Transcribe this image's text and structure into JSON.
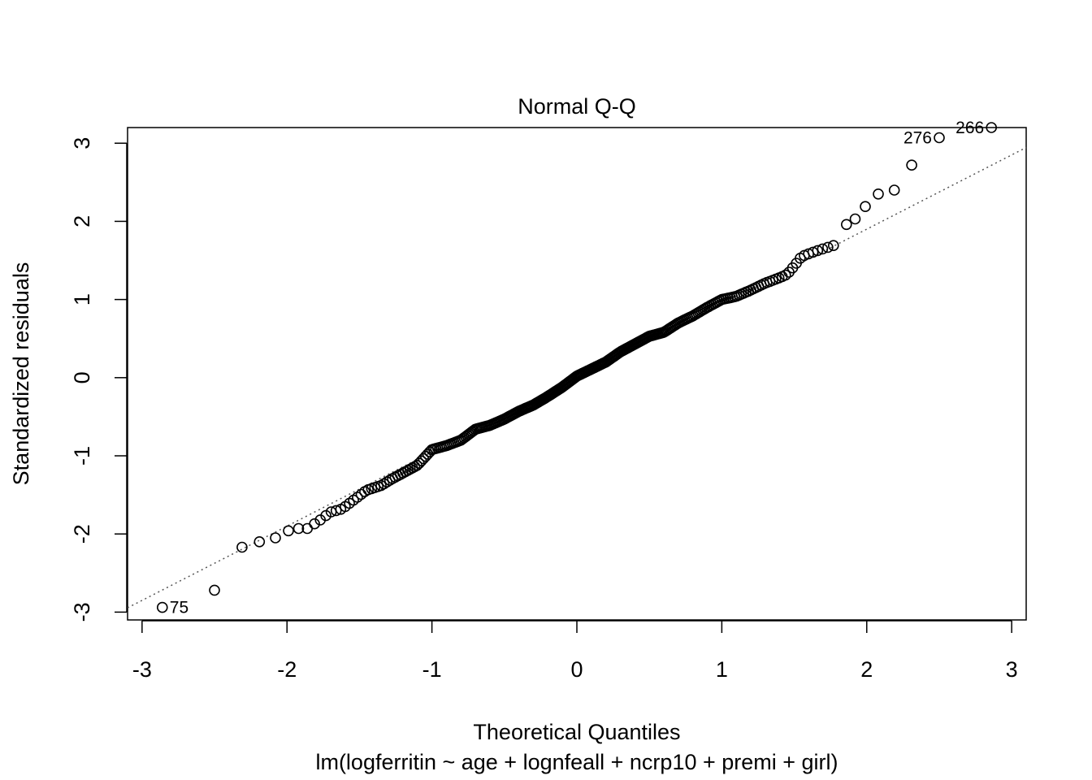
{
  "chart_data": {
    "type": "scatter",
    "title": "Normal Q-Q",
    "xlabel": "Theoretical Quantiles",
    "xlabel2": "lm(logferritin ~ age + lognfeall + ncrp10 + premi + girl)",
    "ylabel": "Standardized residuals",
    "xlim": [
      -3.1,
      3.1
    ],
    "ylim": [
      -3.1,
      3.2
    ],
    "xticks": [
      -3,
      -2,
      -1,
      0,
      1,
      2,
      3
    ],
    "yticks": [
      -3,
      -2,
      -1,
      0,
      1,
      2,
      3
    ],
    "grid": false,
    "reference_line": {
      "style": "dotted",
      "slope": 0.95,
      "intercept": 0.0
    },
    "annotations": [
      {
        "label": "266",
        "x": 2.86,
        "y": 3.2
      },
      {
        "label": "276",
        "x": 2.5,
        "y": 3.07
      },
      {
        "label": "75",
        "x": -2.86,
        "y": -2.94
      }
    ],
    "series": [
      {
        "num_points": 300,
        "tails": [
          {
            "x": -2.86,
            "y": -2.94
          },
          {
            "x": -2.5,
            "y": -2.72
          },
          {
            "x": -2.31,
            "y": -2.17
          },
          {
            "x": -2.19,
            "y": -2.1
          },
          {
            "x": -2.08,
            "y": -2.05
          },
          {
            "x": -1.99,
            "y": -1.96
          },
          {
            "x": -1.92,
            "y": -1.93
          },
          {
            "x": -1.86,
            "y": -1.93
          },
          {
            "x": -1.81,
            "y": -1.87
          },
          {
            "x": 1.86,
            "y": 1.96
          },
          {
            "x": 1.92,
            "y": 2.03
          },
          {
            "x": 1.99,
            "y": 2.19
          },
          {
            "x": 2.08,
            "y": 2.35
          },
          {
            "x": 2.19,
            "y": 2.4
          },
          {
            "x": 2.31,
            "y": 2.72
          },
          {
            "x": 2.5,
            "y": 3.07
          },
          {
            "x": 2.86,
            "y": 3.2
          }
        ],
        "body_curve": [
          [
            -1.77,
            -1.82
          ],
          [
            -1.7,
            -1.72
          ],
          [
            -1.62,
            -1.68
          ],
          [
            -1.55,
            -1.58
          ],
          [
            -1.45,
            -1.44
          ],
          [
            -1.35,
            -1.38
          ],
          [
            -1.28,
            -1.3
          ],
          [
            -1.18,
            -1.2
          ],
          [
            -1.1,
            -1.12
          ],
          [
            -1.05,
            -1.02
          ],
          [
            -1.0,
            -0.92
          ],
          [
            -0.9,
            -0.87
          ],
          [
            -0.8,
            -0.8
          ],
          [
            -0.7,
            -0.66
          ],
          [
            -0.6,
            -0.61
          ],
          [
            -0.5,
            -0.53
          ],
          [
            -0.4,
            -0.43
          ],
          [
            -0.3,
            -0.35
          ],
          [
            -0.2,
            -0.24
          ],
          [
            -0.1,
            -0.12
          ],
          [
            0.0,
            0.02
          ],
          [
            0.1,
            0.11
          ],
          [
            0.2,
            0.2
          ],
          [
            0.3,
            0.33
          ],
          [
            0.4,
            0.43
          ],
          [
            0.5,
            0.53
          ],
          [
            0.6,
            0.58
          ],
          [
            0.7,
            0.7
          ],
          [
            0.8,
            0.79
          ],
          [
            0.9,
            0.9
          ],
          [
            1.0,
            1.0
          ],
          [
            1.1,
            1.04
          ],
          [
            1.2,
            1.12
          ],
          [
            1.3,
            1.21
          ],
          [
            1.4,
            1.28
          ],
          [
            1.45,
            1.32
          ],
          [
            1.5,
            1.43
          ],
          [
            1.55,
            1.55
          ],
          [
            1.62,
            1.6
          ],
          [
            1.7,
            1.65
          ],
          [
            1.77,
            1.69
          ]
        ]
      }
    ]
  }
}
